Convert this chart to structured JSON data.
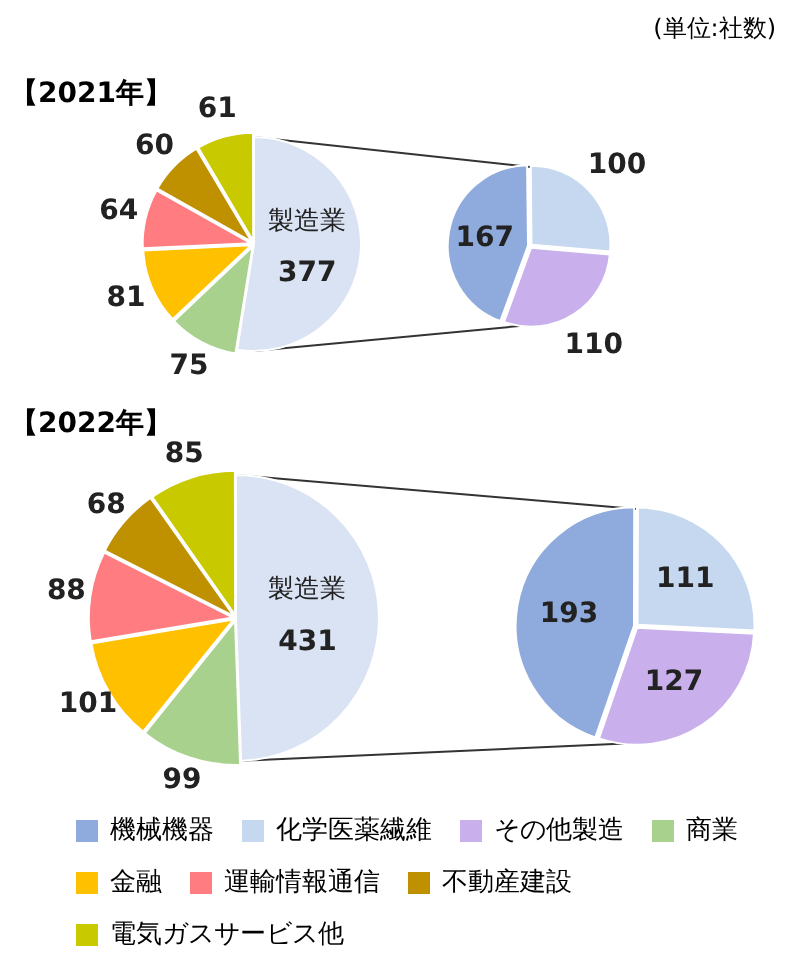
{
  "chart_data": [
    {
      "type": "pie",
      "title": "【2021年】",
      "annotations": [
        "(単位:社数)"
      ],
      "categories": [
        "製造業",
        "商業",
        "金融",
        "運輸情報通信",
        "不動産建設",
        "電気ガスサービス他"
      ],
      "values": [
        377,
        75,
        81,
        64,
        60,
        61
      ],
      "colors": [
        "#dae3f3",
        "#a9d18e",
        "#ffc000",
        "#ff7c80",
        "#bf9000",
        "#c9c900"
      ],
      "data_labels": true,
      "legend": "bottom"
    },
    {
      "type": "pie",
      "categories": [
        "機械機器",
        "化学医薬繊維",
        "その他製造"
      ],
      "values": [
        167,
        100,
        110
      ],
      "colors": [
        "#8faadc",
        "#c5d8f0",
        "#c9b0ec"
      ],
      "data_labels": true,
      "legend": "bottom"
    },
    {
      "type": "pie",
      "title": "【2022年】",
      "categories": [
        "製造業",
        null,
        null,
        null,
        null,
        null
      ],
      "values": [
        431,
        99,
        101,
        88,
        68,
        85
      ],
      "colors": [
        "#dae3f3",
        "#a9d18e",
        "#ffc000",
        "#ff7c80",
        "#bf9000",
        "#c9c900"
      ],
      "data_labels": true
    },
    {
      "type": "pie",
      "categories": [
        null,
        null,
        null
      ],
      "values": [
        193,
        111,
        127
      ],
      "colors": [
        "#8faadc",
        "#c5d8f0",
        "#c9b0ec"
      ],
      "data_labels": true
    }
  ]
}
